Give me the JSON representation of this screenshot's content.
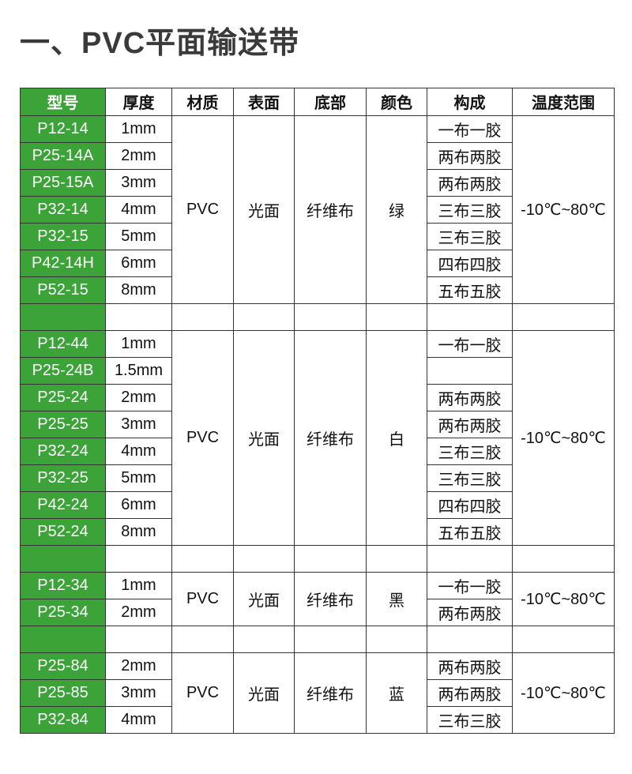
{
  "page": {
    "title": "一、PVC平面输送带"
  },
  "theme": {
    "green": "#3BA338",
    "border": "#333333",
    "text": "#111111",
    "title": "#3A3A3A",
    "model_text": "#FFFFFF"
  },
  "table": {
    "headers": [
      "型号",
      "厚度",
      "材质",
      "表面",
      "底部",
      "颜色",
      "构成",
      "温度范围"
    ],
    "sections": [
      {
        "material": "PVC",
        "surface": "光面",
        "bottom": "纤维布",
        "color": "绿",
        "temperature": "-10℃~80℃",
        "rows": [
          {
            "model": "P12-14",
            "thickness": "1mm",
            "composition": "一布一胶"
          },
          {
            "model": "P25-14A",
            "thickness": "2mm",
            "composition": "两布两胶"
          },
          {
            "model": "P25-15A",
            "thickness": "3mm",
            "composition": "两布两胶"
          },
          {
            "model": "P32-14",
            "thickness": "4mm",
            "composition": "三布三胶"
          },
          {
            "model": "P32-15",
            "thickness": "5mm",
            "composition": "三布三胶"
          },
          {
            "model": "P42-14H",
            "thickness": "6mm",
            "composition": "四布四胶"
          },
          {
            "model": "P52-15",
            "thickness": "8mm",
            "composition": "五布五胶"
          }
        ]
      },
      {
        "material": "PVC",
        "surface": "光面",
        "bottom": "纤维布",
        "color": "白",
        "temperature": "-10℃~80℃",
        "rows": [
          {
            "model": "P12-44",
            "thickness": "1mm",
            "composition": "一布一胶"
          },
          {
            "model": "P25-24B",
            "thickness": "1.5mm",
            "composition": ""
          },
          {
            "model": "P25-24",
            "thickness": "2mm",
            "composition": "两布两胶"
          },
          {
            "model": "P25-25",
            "thickness": "3mm",
            "composition": "两布两胶"
          },
          {
            "model": "P32-24",
            "thickness": "4mm",
            "composition": "三布三胶"
          },
          {
            "model": "P32-25",
            "thickness": "5mm",
            "composition": "三布三胶"
          },
          {
            "model": "P42-24",
            "thickness": "6mm",
            "composition": "四布四胶"
          },
          {
            "model": "P52-24",
            "thickness": "8mm",
            "composition": "五布五胶"
          }
        ]
      },
      {
        "material": "PVC",
        "surface": "光面",
        "bottom": "纤维布",
        "color": "黑",
        "temperature": "-10℃~80℃",
        "rows": [
          {
            "model": "P12-34",
            "thickness": "1mm",
            "composition": "一布一胶"
          },
          {
            "model": "P25-34",
            "thickness": "2mm",
            "composition": "两布两胶"
          }
        ]
      },
      {
        "material": "PVC",
        "surface": "光面",
        "bottom": "纤维布",
        "color": "蓝",
        "temperature": "-10℃~80℃",
        "rows": [
          {
            "model": "P25-84",
            "thickness": "2mm",
            "composition": "两布两胶"
          },
          {
            "model": "P25-85",
            "thickness": "3mm",
            "composition": "两布两胶"
          },
          {
            "model": "P32-84",
            "thickness": "4mm",
            "composition": "三布三胶"
          }
        ]
      }
    ]
  }
}
